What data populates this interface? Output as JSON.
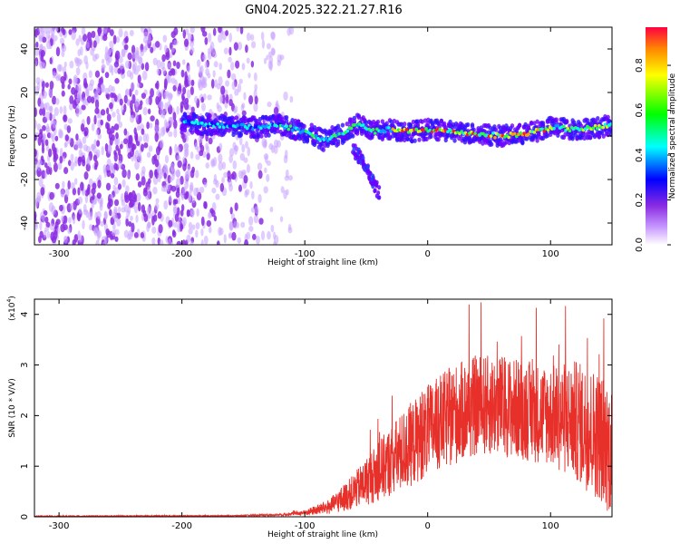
{
  "title": "GN04.2025.322.21.27.R16",
  "chart_data": [
    {
      "type": "heatmap",
      "name": "spectrogram",
      "xlabel": "Height of straight line (km)",
      "ylabel": "Frequency (Hz)",
      "xlim": [
        -320,
        150
      ],
      "ylim": [
        -50,
        50
      ],
      "xticks": [
        -300,
        -200,
        -100,
        0,
        100
      ],
      "xtick_labels": [
        "-300",
        "-200",
        "-100",
        "0",
        "100"
      ],
      "yticks": [
        -40,
        -20,
        0,
        20,
        40
      ],
      "ytick_labels": [
        "-40",
        "-20",
        "0",
        "20",
        "40"
      ],
      "colorbar": {
        "label": "Normalized spectral amplitude",
        "range": [
          0,
          0.97
        ],
        "ticks": [
          0.0,
          0.2,
          0.4,
          0.6,
          0.8
        ],
        "tick_labels": [
          "0.0",
          "0.2",
          "0.4",
          "0.6",
          "0.8"
        ],
        "colors": [
          "#ffffff",
          "#9b30ff",
          "#0000ff",
          "#00ffff",
          "#00ff00",
          "#ffff00",
          "#ff0000"
        ]
      },
      "ridge": {
        "height_km": [
          -195,
          -170,
          -140,
          -120,
          -100,
          -85,
          -70,
          -55,
          -45,
          -30,
          -15,
          0,
          20,
          40,
          60,
          80,
          100,
          120,
          140,
          150
        ],
        "frequency_hz": [
          6,
          5,
          4,
          5,
          2,
          -2,
          1,
          6,
          2,
          3,
          2,
          3,
          2,
          1,
          0,
          1,
          4,
          3,
          4,
          5
        ]
      },
      "branch": {
        "height_km": [
          -60,
          -55,
          -50,
          -45,
          -40
        ],
        "frequency_hz": [
          -6,
          -10,
          -15,
          -20,
          -26
        ]
      },
      "noise_region_km": [
        -320,
        -120
      ]
    },
    {
      "type": "line",
      "name": "snr",
      "xlabel": "Height of straight line (km)",
      "ylabel": "SNR (10 * V/V)",
      "scale_label": "(x10^4)",
      "scale_base": "(x10",
      "scale_exp": "4",
      "xlim": [
        -320,
        150
      ],
      "ylim": [
        0,
        4.3
      ],
      "xticks": [
        -300,
        -200,
        -100,
        0,
        100
      ],
      "xtick_labels": [
        "-300",
        "-200",
        "-100",
        "0",
        "100"
      ],
      "yticks": [
        0,
        1,
        2,
        3,
        4
      ],
      "ytick_labels": [
        "0",
        "1",
        "2",
        "3",
        "4"
      ],
      "color": "#e8302a",
      "envelope": {
        "x": [
          -320,
          -160,
          -120,
          -100,
          -80,
          -60,
          -40,
          -20,
          0,
          20,
          40,
          60,
          80,
          100,
          120,
          140,
          150
        ],
        "mean": [
          0.01,
          0.02,
          0.04,
          0.08,
          0.2,
          0.5,
          0.9,
          1.3,
          1.7,
          2.0,
          2.2,
          2.2,
          2.1,
          2.0,
          1.9,
          1.6,
          1.3
        ],
        "spread": [
          0.01,
          0.01,
          0.02,
          0.05,
          0.15,
          0.35,
          0.6,
          0.8,
          0.9,
          1.0,
          1.0,
          1.0,
          1.0,
          1.0,
          1.2,
          1.3,
          1.3
        ]
      }
    }
  ]
}
